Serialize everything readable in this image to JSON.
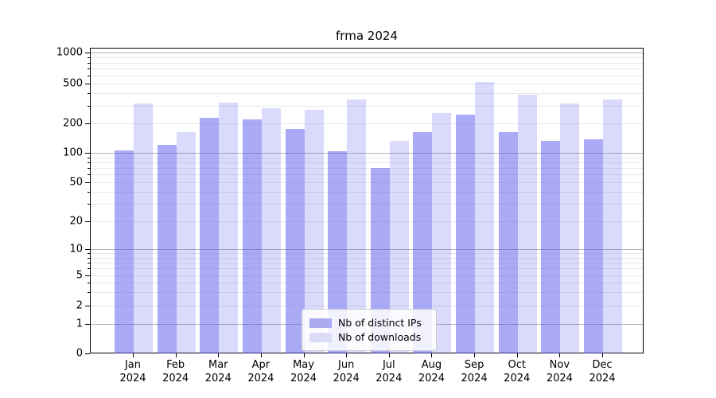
{
  "chart_data": {
    "type": "bar",
    "title": "frma 2024",
    "yscale": "symlog",
    "months": [
      "Jan",
      "Feb",
      "Mar",
      "Apr",
      "May",
      "Jun",
      "Jul",
      "Aug",
      "Sep",
      "Oct",
      "Nov",
      "Dec"
    ],
    "year": "2024",
    "series": [
      {
        "name": "Nb of distinct IPs",
        "color": "rgba(85,85,240,0.50)",
        "swatch": "#aaaaf0",
        "values": [
          108,
          122,
          230,
          225,
          178,
          105,
          71,
          165,
          250,
          165,
          135,
          140
        ]
      },
      {
        "name": "Nb of downloads",
        "color": "rgba(85,85,240,0.22)",
        "swatch": "#dcdcf8",
        "values": [
          320,
          165,
          330,
          290,
          280,
          355,
          135,
          260,
          530,
          395,
          320,
          350
        ]
      }
    ],
    "y_ticks": [
      0,
      1,
      2,
      5,
      10,
      20,
      50,
      100,
      200,
      500,
      1000
    ],
    "ylim": [
      0,
      1150
    ],
    "grid": true,
    "legend_position": "lower center",
    "colors": {
      "grid_major": "#b3b3b3",
      "grid_minor": "#e8e8e8",
      "axis": "#000000"
    }
  },
  "legend": {
    "items": [
      {
        "label": "Nb of distinct IPs"
      },
      {
        "label": "Nb of downloads"
      }
    ]
  }
}
